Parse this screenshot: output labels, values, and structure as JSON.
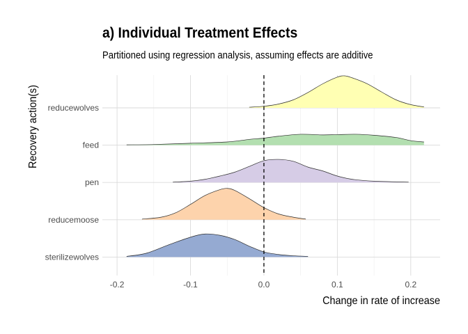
{
  "chart_data": {
    "type": "ridgeline",
    "title": "a) Individual Treatment Effects",
    "subtitle": "Partitioned using regression analysis, assuming effects are additive",
    "xlabel": "Change in rate of increase",
    "ylabel": "Recovery action(s)",
    "xlim": [
      -0.22,
      0.24
    ],
    "x_ticks": [
      -0.2,
      -0.1,
      0.0,
      0.1,
      0.2
    ],
    "x_tick_labels": [
      "-0.2",
      "-0.1",
      "0.0",
      "0.1",
      "0.2"
    ],
    "reference_line": {
      "x": 0.0,
      "style": "dashed"
    },
    "grid": true,
    "categories": [
      "reducewolves",
      "feed",
      "pen",
      "reducemoose",
      "sterilizewolves"
    ],
    "series": [
      {
        "name": "reducewolves",
        "color": "#ffffb3",
        "points": [
          [
            -0.02,
            0.02
          ],
          [
            0.0,
            0.05
          ],
          [
            0.02,
            0.12
          ],
          [
            0.04,
            0.25
          ],
          [
            0.06,
            0.48
          ],
          [
            0.08,
            0.75
          ],
          [
            0.1,
            0.96
          ],
          [
            0.11,
            1.0
          ],
          [
            0.12,
            0.94
          ],
          [
            0.14,
            0.76
          ],
          [
            0.16,
            0.5
          ],
          [
            0.18,
            0.25
          ],
          [
            0.2,
            0.1
          ],
          [
            0.218,
            0.03
          ]
        ]
      },
      {
        "name": "feed",
        "color": "#b3dfb0",
        "points": [
          [
            -0.187,
            0.01
          ],
          [
            -0.15,
            0.02
          ],
          [
            -0.1,
            0.06
          ],
          [
            -0.05,
            0.1
          ],
          [
            -0.02,
            0.18
          ],
          [
            0.0,
            0.22
          ],
          [
            0.02,
            0.28
          ],
          [
            0.05,
            0.34
          ],
          [
            0.08,
            0.32
          ],
          [
            0.1,
            0.33
          ],
          [
            0.125,
            0.34
          ],
          [
            0.15,
            0.31
          ],
          [
            0.18,
            0.24
          ],
          [
            0.2,
            0.14
          ],
          [
            0.218,
            0.1
          ]
        ]
      },
      {
        "name": "pen",
        "color": "#d6cce6",
        "points": [
          [
            -0.124,
            0.01
          ],
          [
            -0.1,
            0.04
          ],
          [
            -0.08,
            0.1
          ],
          [
            -0.06,
            0.2
          ],
          [
            -0.04,
            0.32
          ],
          [
            -0.02,
            0.5
          ],
          [
            0.0,
            0.68
          ],
          [
            0.02,
            0.72
          ],
          [
            0.04,
            0.66
          ],
          [
            0.06,
            0.48
          ],
          [
            0.08,
            0.36
          ],
          [
            0.1,
            0.2
          ],
          [
            0.12,
            0.1
          ],
          [
            0.15,
            0.04
          ],
          [
            0.197,
            0.01
          ]
        ]
      },
      {
        "name": "reducemoose",
        "color": "#fdd3ac",
        "points": [
          [
            -0.166,
            0.02
          ],
          [
            -0.14,
            0.08
          ],
          [
            -0.12,
            0.22
          ],
          [
            -0.1,
            0.48
          ],
          [
            -0.08,
            0.76
          ],
          [
            -0.06,
            0.94
          ],
          [
            -0.05,
            0.98
          ],
          [
            -0.04,
            0.92
          ],
          [
            -0.02,
            0.66
          ],
          [
            0.0,
            0.38
          ],
          [
            0.02,
            0.18
          ],
          [
            0.04,
            0.08
          ],
          [
            0.057,
            0.02
          ]
        ]
      },
      {
        "name": "sterilizewolves",
        "color": "#95aad2",
        "points": [
          [
            -0.187,
            0.02
          ],
          [
            -0.16,
            0.12
          ],
          [
            -0.13,
            0.38
          ],
          [
            -0.1,
            0.62
          ],
          [
            -0.08,
            0.72
          ],
          [
            -0.06,
            0.68
          ],
          [
            -0.04,
            0.55
          ],
          [
            -0.02,
            0.34
          ],
          [
            0.0,
            0.16
          ],
          [
            0.02,
            0.08
          ],
          [
            0.04,
            0.04
          ],
          [
            0.06,
            0.02
          ]
        ]
      }
    ]
  }
}
